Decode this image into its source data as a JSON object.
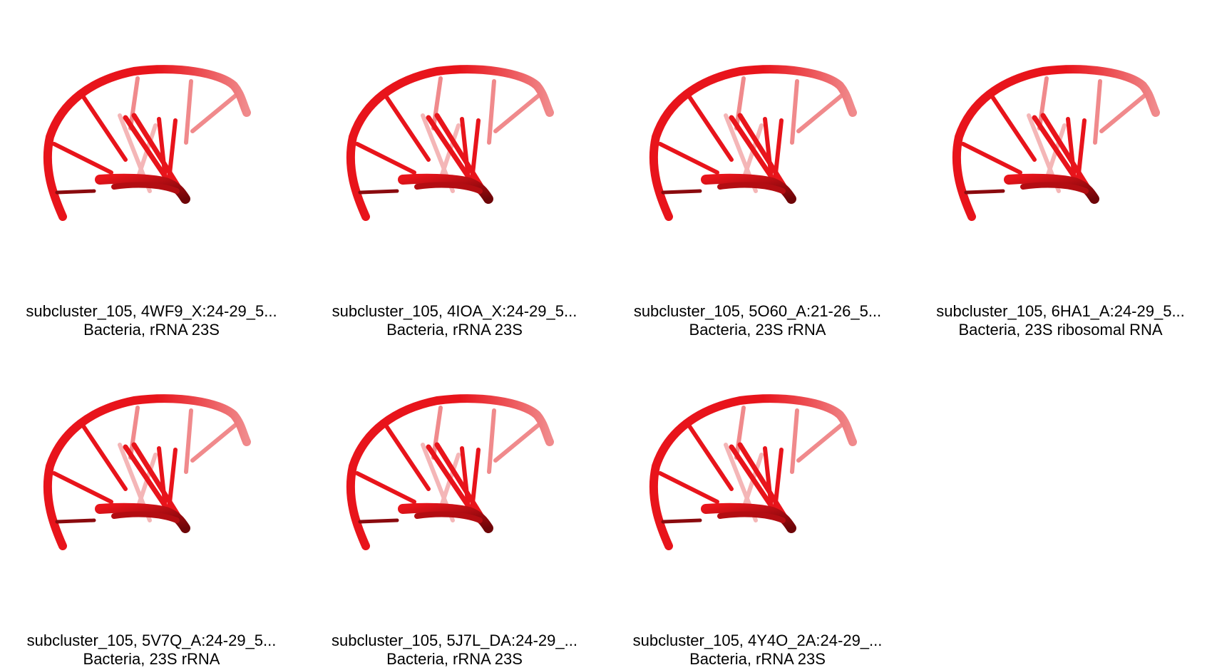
{
  "structure_color": "#e8141b",
  "panels": [
    {
      "title": "subcluster_105, 4WF9_X:24-29_5...",
      "subtitle": "Bacteria, rRNA 23S",
      "icon": "rna-3d-structure"
    },
    {
      "title": "subcluster_105, 4IOA_X:24-29_5...",
      "subtitle": "Bacteria, rRNA 23S",
      "icon": "rna-3d-structure"
    },
    {
      "title": "subcluster_105, 5O60_A:21-26_5...",
      "subtitle": "Bacteria, 23S rRNA",
      "icon": "rna-3d-structure"
    },
    {
      "title": "subcluster_105, 6HA1_A:24-29_5...",
      "subtitle": "Bacteria, 23S ribosomal RNA",
      "icon": "rna-3d-structure"
    },
    {
      "title": "subcluster_105, 5V7Q_A:24-29_5...",
      "subtitle": "Bacteria, 23S rRNA",
      "icon": "rna-3d-structure"
    },
    {
      "title": "subcluster_105, 5J7L_DA:24-29_...",
      "subtitle": "Bacteria, rRNA 23S",
      "icon": "rna-3d-structure"
    },
    {
      "title": "subcluster_105, 4Y4O_2A:24-29_...",
      "subtitle": "Bacteria, rRNA 23S",
      "icon": "rna-3d-structure"
    }
  ]
}
